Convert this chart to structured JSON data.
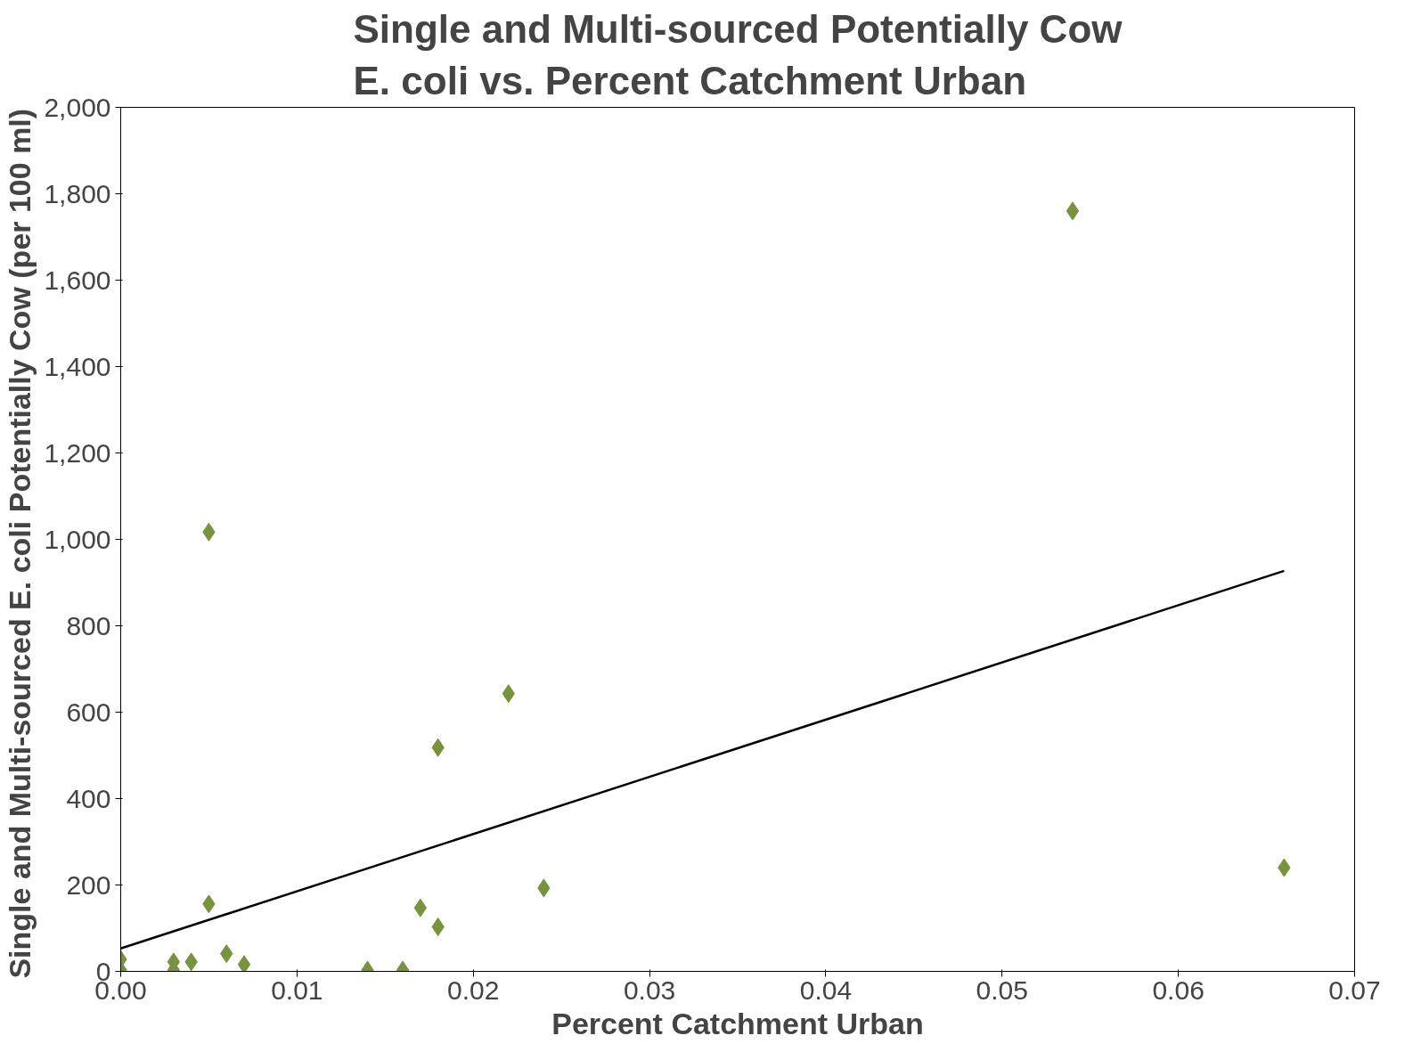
{
  "chart_data": {
    "type": "scatter",
    "title": "Single and Multi-sourced Potentially Cow E. coli vs. Percent Catchment Urban",
    "xlabel": "Percent Catchment Urban",
    "ylabel": "Single and Multi-sourced E. coli Potentially Cow  (per 100 ml)",
    "xlim": [
      0,
      0.07
    ],
    "xticks": [
      {
        "value": 0,
        "label": "0.00"
      },
      {
        "value": 0.01,
        "label": "0.01"
      },
      {
        "value": 0.02,
        "label": "0.02"
      },
      {
        "value": 0.03,
        "label": "0.03"
      },
      {
        "value": 0.04,
        "label": "0.04"
      },
      {
        "value": 0.05,
        "label": "0.05"
      },
      {
        "value": 0.06,
        "label": "0.06"
      },
      {
        "value": 0.07,
        "label": "0.07"
      }
    ],
    "ylim": [
      0,
      2000
    ],
    "yticks": [
      {
        "value": 0,
        "label": "0"
      },
      {
        "value": 200,
        "label": "200"
      },
      {
        "value": 400,
        "label": "400"
      },
      {
        "value": 600,
        "label": "600"
      },
      {
        "value": 800,
        "label": "800"
      },
      {
        "value": 1000,
        "label": "1,000"
      },
      {
        "value": 1200,
        "label": "1,200"
      },
      {
        "value": 1400,
        "label": "1,400"
      },
      {
        "value": 1600,
        "label": "1,600"
      },
      {
        "value": 1800,
        "label": "1,800"
      },
      {
        "value": 2000,
        "label": "2,000"
      }
    ],
    "grid": false,
    "series": [
      {
        "type": "scatter",
        "marker": "diamond",
        "color": "#77933c",
        "x": [
          0,
          0,
          0.003,
          0.003,
          0.004,
          0.005,
          0.005,
          0.006,
          0.007,
          0.014,
          0.016,
          0.017,
          0.018,
          0.018,
          0.022,
          0.024,
          0.054,
          0.066
        ],
        "values": [
          28,
          3,
          22,
          3,
          22,
          156,
          1017,
          41,
          16,
          3,
          3,
          147,
          103,
          518,
          643,
          193,
          1760,
          240
        ]
      },
      {
        "type": "line",
        "color": "#000000",
        "x": [
          0,
          0.066
        ],
        "values": [
          53,
          927
        ]
      }
    ]
  }
}
